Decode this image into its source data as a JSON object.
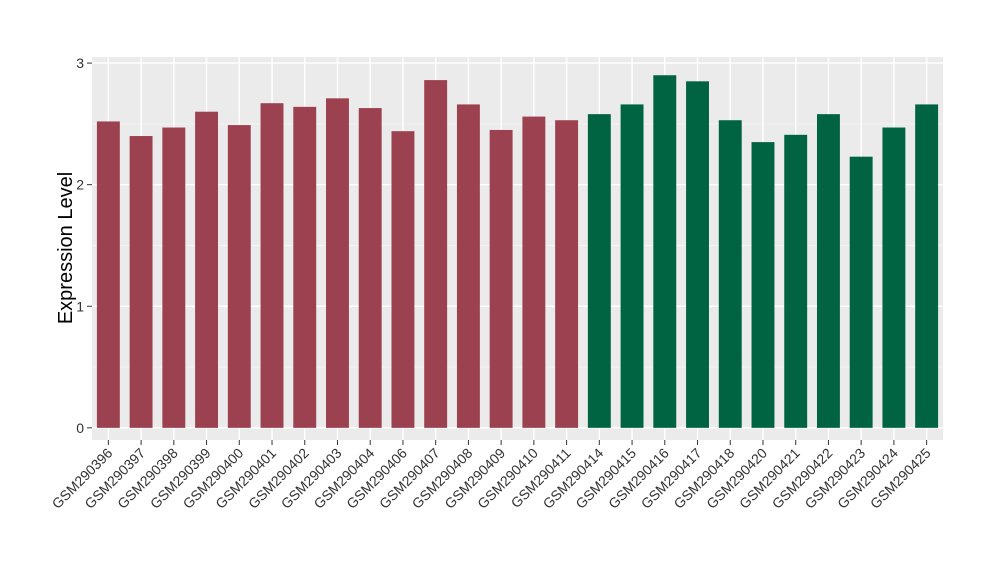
{
  "chart_data": {
    "type": "bar",
    "title": "",
    "xlabel": "",
    "ylabel": "Expression Level",
    "ylim": [
      -0.1,
      3.05
    ],
    "yticks": [
      0,
      1,
      2,
      3
    ],
    "grid": true,
    "legend": "none",
    "categories": [
      "GSM290396",
      "GSM290397",
      "GSM290398",
      "GSM290399",
      "GSM290400",
      "GSM290401",
      "GSM290402",
      "GSM290403",
      "GSM290404",
      "GSM290406",
      "GSM290407",
      "GSM290408",
      "GSM290409",
      "GSM290410",
      "GSM290411",
      "GSM290414",
      "GSM290415",
      "GSM290416",
      "GSM290417",
      "GSM290418",
      "GSM290420",
      "GSM290421",
      "GSM290422",
      "GSM290423",
      "GSM290424",
      "GSM290425"
    ],
    "values": [
      2.52,
      2.4,
      2.47,
      2.6,
      2.49,
      2.67,
      2.64,
      2.71,
      2.63,
      2.44,
      2.86,
      2.66,
      2.45,
      2.56,
      2.53,
      2.58,
      2.66,
      2.9,
      2.85,
      2.53,
      2.35,
      2.41,
      2.58,
      2.23,
      2.47,
      2.66
    ],
    "group_colors": [
      "#9b4150",
      "#006442"
    ],
    "bar_groups": [
      0,
      0,
      0,
      0,
      0,
      0,
      0,
      0,
      0,
      0,
      0,
      0,
      0,
      0,
      0,
      1,
      1,
      1,
      1,
      1,
      1,
      1,
      1,
      1,
      1,
      1
    ]
  }
}
